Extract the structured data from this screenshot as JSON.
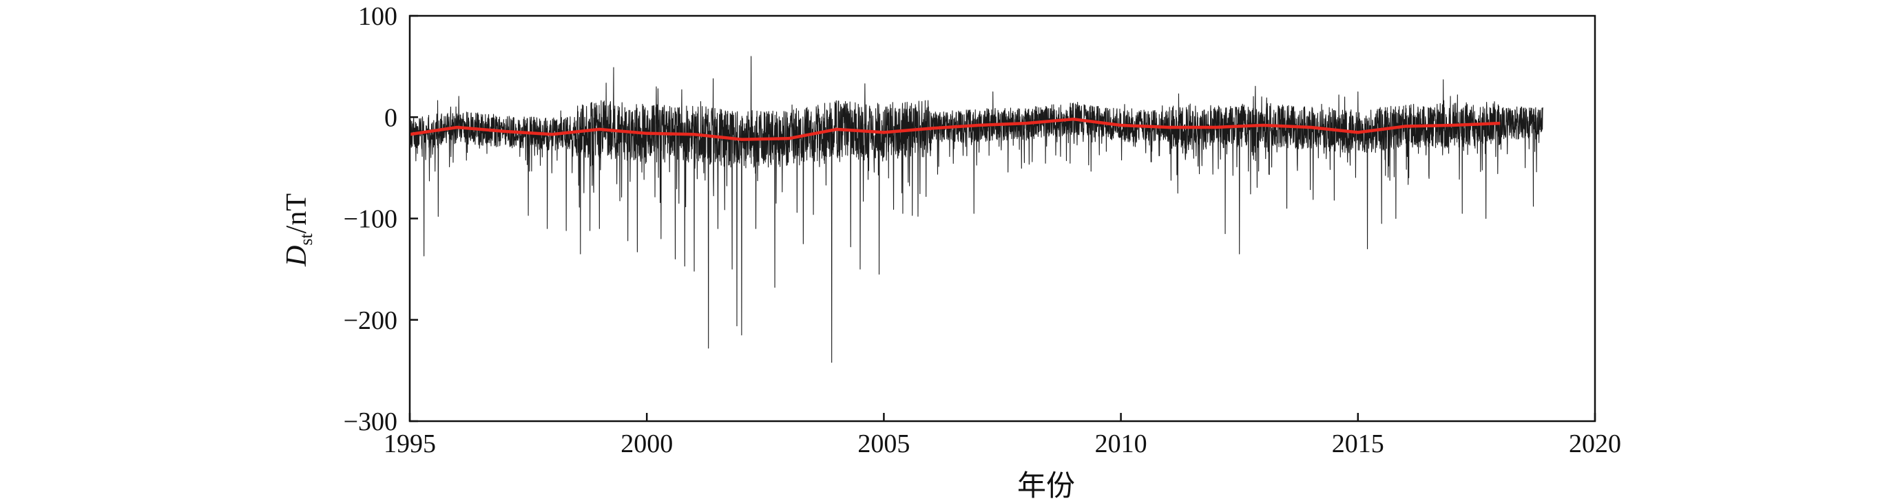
{
  "chart_data": {
    "type": "line",
    "title": "",
    "xlabel": "年份",
    "ylabel": {
      "main": "D",
      "subscript": "st",
      "unit": "/nT"
    },
    "xlim": [
      1995,
      2020
    ],
    "ylim": [
      -300,
      100
    ],
    "xticks": [
      1995,
      2000,
      2005,
      2010,
      2015,
      2020
    ],
    "xtick_labels": [
      "1995",
      "2000",
      "2005",
      "2010",
      "2015",
      "2020"
    ],
    "yticks": [
      100,
      0,
      -100,
      -200,
      -300
    ],
    "ytick_labels": [
      "100",
      "0",
      "−100",
      "−200",
      "−300"
    ],
    "grid": false,
    "legend": "none",
    "colors": {
      "raw": "#1a1a1a",
      "trend": "#e8281e",
      "axes": "#111111"
    },
    "series": [
      {
        "style": "daily Dst (thin black)",
        "x_range": [
          1995.0,
          2018.9
        ],
        "baseline": -12,
        "positive_peaks": [
          {
            "x": 1999.3,
            "y": 49
          },
          {
            "x": 2000.2,
            "y": 30
          },
          {
            "x": 2001.4,
            "y": 38
          },
          {
            "x": 2002.2,
            "y": 60
          },
          {
            "x": 2004.6,
            "y": 33
          },
          {
            "x": 2007.3,
            "y": 25
          },
          {
            "x": 2015.0,
            "y": 25
          },
          {
            "x": 2016.8,
            "y": 37
          },
          {
            "x": 2017.1,
            "y": 22
          }
        ],
        "storm_minima": [
          {
            "x": 1995.3,
            "y": -137
          },
          {
            "x": 1995.6,
            "y": -98
          },
          {
            "x": 1997.5,
            "y": -97
          },
          {
            "x": 1997.9,
            "y": -110
          },
          {
            "x": 1998.3,
            "y": -112
          },
          {
            "x": 1998.6,
            "y": -135
          },
          {
            "x": 1998.8,
            "y": -112
          },
          {
            "x": 1999.0,
            "y": -110
          },
          {
            "x": 1999.6,
            "y": -122
          },
          {
            "x": 1999.8,
            "y": -133
          },
          {
            "x": 2000.3,
            "y": -120
          },
          {
            "x": 2000.6,
            "y": -140
          },
          {
            "x": 2000.8,
            "y": -147
          },
          {
            "x": 2001.0,
            "y": -152
          },
          {
            "x": 2001.3,
            "y": -228
          },
          {
            "x": 2001.5,
            "y": -110
          },
          {
            "x": 2001.8,
            "y": -150
          },
          {
            "x": 2001.9,
            "y": -206
          },
          {
            "x": 2002.0,
            "y": -215
          },
          {
            "x": 2002.3,
            "y": -110
          },
          {
            "x": 2002.7,
            "y": -168
          },
          {
            "x": 2003.3,
            "y": -125
          },
          {
            "x": 2003.9,
            "y": -242
          },
          {
            "x": 2004.3,
            "y": -128
          },
          {
            "x": 2004.5,
            "y": -150
          },
          {
            "x": 2004.9,
            "y": -155
          },
          {
            "x": 2005.4,
            "y": -95
          },
          {
            "x": 2005.6,
            "y": -97
          },
          {
            "x": 2006.9,
            "y": -95
          },
          {
            "x": 2011.2,
            "y": -75
          },
          {
            "x": 2012.2,
            "y": -115
          },
          {
            "x": 2012.5,
            "y": -135
          },
          {
            "x": 2013.5,
            "y": -90
          },
          {
            "x": 2014.5,
            "y": -82
          },
          {
            "x": 2015.2,
            "y": -130
          },
          {
            "x": 2015.5,
            "y": -105
          },
          {
            "x": 2015.8,
            "y": -100
          },
          {
            "x": 2017.2,
            "y": -95
          },
          {
            "x": 2017.7,
            "y": -100
          },
          {
            "x": 2018.7,
            "y": -88
          }
        ]
      },
      {
        "style": "annual mean trend (red)",
        "x": [
          1995.0,
          1996.0,
          1997.0,
          1998.0,
          1999.0,
          2000.0,
          2001.0,
          2002.0,
          2003.0,
          2004.0,
          2005.0,
          2006.0,
          2007.0,
          2008.0,
          2009.0,
          2010.0,
          2011.0,
          2012.0,
          2013.0,
          2014.0,
          2015.0,
          2016.0,
          2017.0,
          2018.0
        ],
        "y": [
          -17,
          -10,
          -14,
          -17,
          -12,
          -16,
          -17,
          -22,
          -21,
          -12,
          -15,
          -11,
          -8,
          -6,
          -2,
          -8,
          -10,
          -10,
          -8,
          -10,
          -15,
          -9,
          -8,
          -6
        ]
      }
    ]
  }
}
